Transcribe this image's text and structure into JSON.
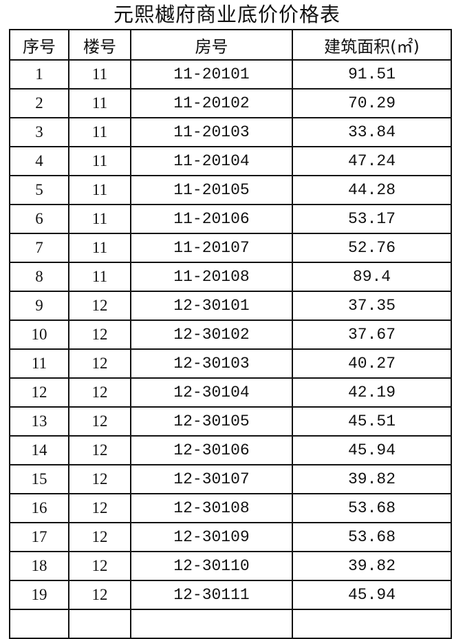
{
  "title": "元熙樾府商业底价价格表",
  "headers": [
    "序号",
    "楼号",
    "房号",
    "建筑面积(㎡)"
  ],
  "rows": [
    [
      "1",
      "11",
      "11-20101",
      "91.51"
    ],
    [
      "2",
      "11",
      "11-20102",
      "70.29"
    ],
    [
      "3",
      "11",
      "11-20103",
      "33.84"
    ],
    [
      "4",
      "11",
      "11-20104",
      "47.24"
    ],
    [
      "5",
      "11",
      "11-20105",
      "44.28"
    ],
    [
      "6",
      "11",
      "11-20106",
      "53.17"
    ],
    [
      "7",
      "11",
      "11-20107",
      "52.76"
    ],
    [
      "8",
      "11",
      "11-20108",
      "89.4"
    ],
    [
      "9",
      "12",
      "12-30101",
      "37.35"
    ],
    [
      "10",
      "12",
      "12-30102",
      "37.67"
    ],
    [
      "11",
      "12",
      "12-30103",
      "40.27"
    ],
    [
      "12",
      "12",
      "12-30104",
      "42.19"
    ],
    [
      "13",
      "12",
      "12-30105",
      "45.51"
    ],
    [
      "14",
      "12",
      "12-30106",
      "45.94"
    ],
    [
      "15",
      "12",
      "12-30107",
      "39.82"
    ],
    [
      "16",
      "12",
      "12-30108",
      "53.68"
    ],
    [
      "17",
      "12",
      "12-30109",
      "53.68"
    ],
    [
      "18",
      "12",
      "12-30110",
      "39.82"
    ],
    [
      "19",
      "12",
      "12-30111",
      "45.94"
    ]
  ]
}
